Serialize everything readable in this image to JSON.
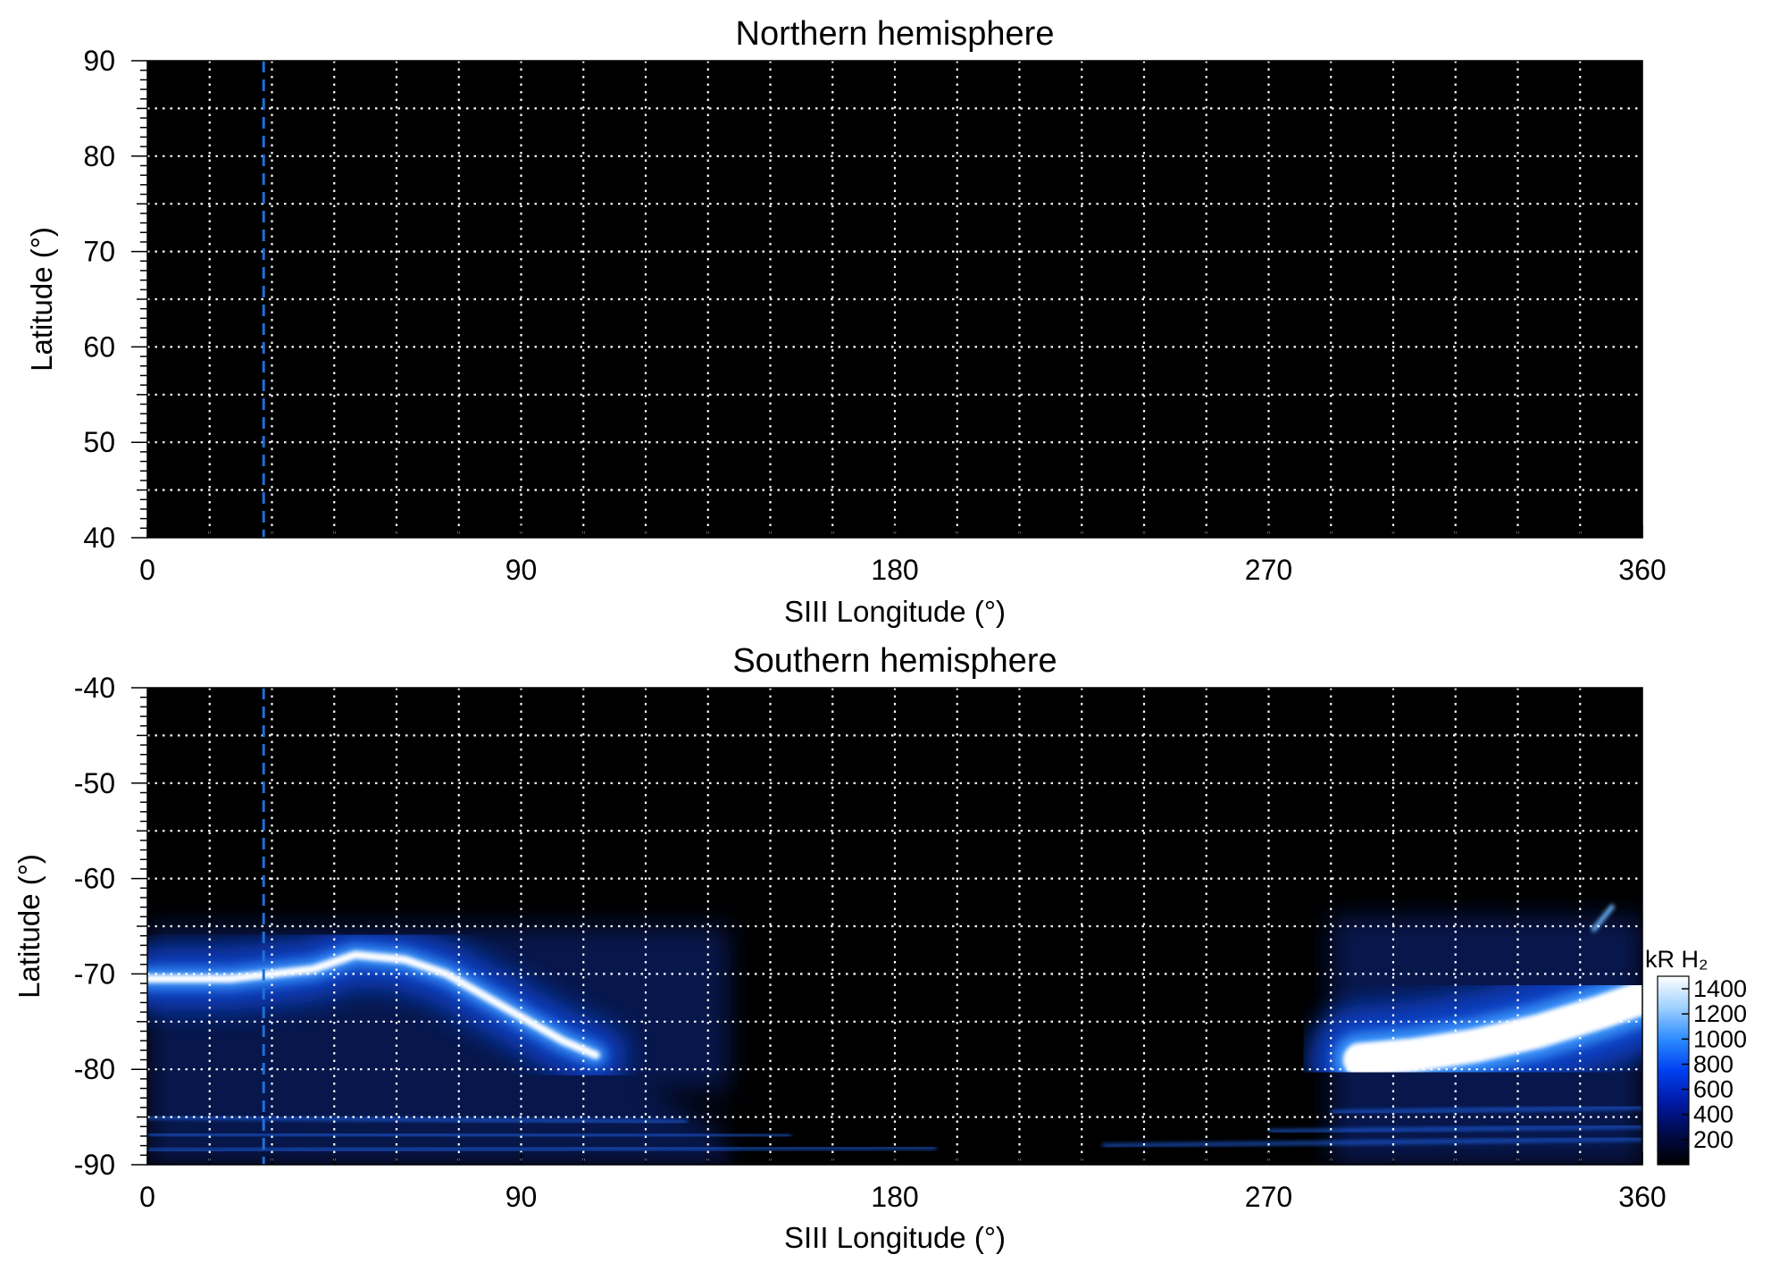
{
  "chart_data": [
    {
      "type": "heatmap",
      "title": "Northern hemisphere",
      "xlabel": "SIII Longitude (°)",
      "ylabel": "Latitude (°)",
      "xlim": [
        0,
        360
      ],
      "ylim": [
        40,
        90
      ],
      "x_ticks": [
        0,
        90,
        180,
        270,
        360
      ],
      "y_ticks": [
        40,
        50,
        60,
        70,
        80,
        90
      ],
      "x_gridlines": [
        15,
        30,
        45,
        60,
        75,
        90,
        105,
        120,
        135,
        150,
        165,
        180,
        195,
        210,
        225,
        240,
        255,
        270,
        285,
        300,
        315,
        330,
        345
      ],
      "y_gridlines": [
        45,
        55,
        65,
        75,
        85
      ],
      "marker_longitude": 28,
      "background_color": "#000000",
      "emission": []
    },
    {
      "type": "heatmap",
      "title": "Southern hemisphere",
      "xlabel": "SIII Longitude (°)",
      "ylabel": "Latitude (°)",
      "xlim": [
        0,
        360
      ],
      "ylim": [
        -90,
        -40
      ],
      "x_ticks": [
        0,
        90,
        180,
        270,
        360
      ],
      "y_ticks": [
        -40,
        -50,
        -60,
        -70,
        -80,
        -90
      ],
      "x_gridlines": [
        15,
        30,
        45,
        60,
        75,
        90,
        105,
        120,
        135,
        150,
        165,
        180,
        195,
        210,
        225,
        240,
        255,
        270,
        285,
        300,
        315,
        330,
        345
      ],
      "y_gridlines": [
        -45,
        -55,
        -65,
        -75,
        -85
      ],
      "marker_longitude": 28,
      "background_color": "#000000",
      "emission": [
        {
          "region": "oval-west",
          "lon": [
            0,
            140
          ],
          "lat_range": [
            -90,
            -65
          ],
          "peak": 1400,
          "path": [
            [
              0,
              -70.5
            ],
            [
              20,
              -70.5
            ],
            [
              40,
              -69.5
            ],
            [
              50,
              -68
            ],
            [
              62,
              -68.5
            ],
            [
              72,
              -70
            ],
            [
              80,
              -72
            ],
            [
              90,
              -74.5
            ],
            [
              100,
              -77
            ],
            [
              108,
              -78.5
            ]
          ]
        },
        {
          "region": "oval-east",
          "lon": [
            285,
            360
          ],
          "lat_range": [
            -90,
            -63
          ],
          "peak": 1400,
          "path": [
            [
              292,
              -79
            ],
            [
              305,
              -78.5
            ],
            [
              320,
              -77.5
            ],
            [
              335,
              -76
            ],
            [
              350,
              -74
            ],
            [
              360,
              -72.5
            ]
          ]
        }
      ],
      "colorbar": {
        "label": "kR H₂",
        "ticks": [
          200,
          400,
          600,
          800,
          1000,
          1200,
          1400
        ],
        "range": [
          0,
          1500
        ],
        "colors": [
          "#000000",
          "#000a4a",
          "#001aa6",
          "#0040f0",
          "#2c8cff",
          "#9ed0ff",
          "#ffffff"
        ]
      }
    }
  ]
}
